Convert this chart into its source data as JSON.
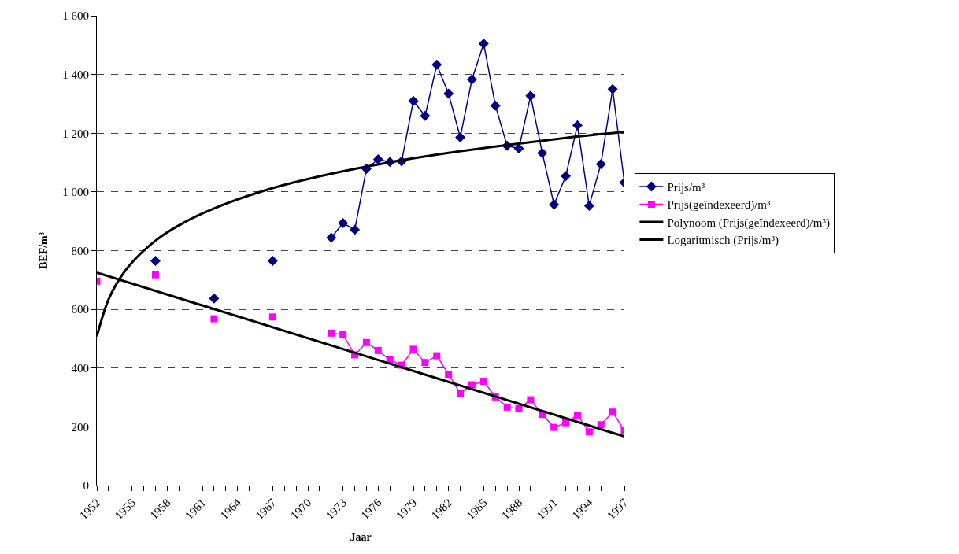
{
  "chart_data": {
    "type": "line",
    "xlabel": "Jaar",
    "ylabel": "BEF/m³",
    "x": [
      1952,
      1953,
      1954,
      1955,
      1956,
      1957,
      1958,
      1959,
      1960,
      1961,
      1962,
      1963,
      1964,
      1965,
      1966,
      1967,
      1968,
      1969,
      1970,
      1971,
      1972,
      1973,
      1974,
      1975,
      1976,
      1977,
      1978,
      1979,
      1980,
      1981,
      1982,
      1983,
      1984,
      1985,
      1986,
      1987,
      1988,
      1989,
      1990,
      1991,
      1992,
      1993,
      1994,
      1995,
      1996,
      1997
    ],
    "series": [
      {
        "name": "Prijs/m³",
        "color": "#000080",
        "marker": "diamond",
        "line_style": "solid",
        "values": [
          null,
          null,
          null,
          null,
          null,
          765,
          null,
          null,
          null,
          null,
          637,
          null,
          null,
          null,
          null,
          765,
          null,
          null,
          null,
          null,
          844,
          894,
          871,
          1079,
          1111,
          1102,
          1104,
          1310,
          1259,
          1433,
          1335,
          1186,
          1383,
          1505,
          1294,
          1157,
          1148,
          1327,
          1132,
          957,
          1054,
          1227,
          953,
          1095,
          1350,
          1032
        ]
      },
      {
        "name": "Prijs(geïndexeerd)/m³",
        "color": "#ff00ff",
        "marker": "square",
        "line_style": "solid",
        "values": [
          696,
          null,
          null,
          null,
          null,
          718,
          null,
          null,
          null,
          null,
          568,
          null,
          null,
          null,
          null,
          574,
          null,
          null,
          null,
          null,
          519,
          514,
          445,
          487,
          460,
          428,
          410,
          464,
          419,
          442,
          379,
          314,
          343,
          355,
          302,
          267,
          262,
          292,
          242,
          198,
          214,
          240,
          183,
          207,
          250,
          187
        ]
      },
      {
        "name": "Polynoom (Prijs(geïndexeerd)/m³)",
        "color": "#000000",
        "marker": "none",
        "line_style": "solid",
        "x": [
          1952,
          1997
        ],
        "values": [
          725,
          167
        ]
      },
      {
        "name": "Logaritmisch (Prijs/m³)",
        "color": "#000000",
        "marker": "none",
        "line_style": "solid",
        "x": [
          1952,
          1953,
          1954,
          1955,
          1957,
          1959,
          1962,
          1967,
          1972,
          1977,
          1982,
          1987,
          1992,
          1997
        ],
        "values": [
          508,
          634,
          708,
          760,
          834,
          886,
          944,
          1013,
          1062,
          1101,
          1133,
          1160,
          1184,
          1205
        ]
      }
    ],
    "xlim": [
      1952,
      1997
    ],
    "xticks": [
      1952,
      {
        "value": 1953,
        "label": null
      },
      {
        "value": 1954,
        "label": null
      },
      1955,
      {
        "value": 1956,
        "label": null
      },
      {
        "value": 1957,
        "label": null
      },
      1958,
      {
        "value": 1959,
        "label": null
      },
      {
        "value": 1960,
        "label": null
      },
      1961,
      {
        "value": 1962,
        "label": null
      },
      {
        "value": 1963,
        "label": null
      },
      1964,
      {
        "value": 1965,
        "label": null
      },
      {
        "value": 1966,
        "label": null
      },
      1967,
      {
        "value": 1968,
        "label": null
      },
      {
        "value": 1969,
        "label": null
      },
      1970,
      {
        "value": 1971,
        "label": null
      },
      {
        "value": 1972,
        "label": null
      },
      1973,
      {
        "value": 1974,
        "label": null
      },
      {
        "value": 1975,
        "label": null
      },
      1976,
      {
        "value": 1977,
        "label": null
      },
      {
        "value": 1978,
        "label": null
      },
      1979,
      {
        "value": 1980,
        "label": null
      },
      {
        "value": 1981,
        "label": null
      },
      1982,
      {
        "value": 1983,
        "label": null
      },
      {
        "value": 1984,
        "label": null
      },
      1985,
      {
        "value": 1986,
        "label": null
      },
      {
        "value": 1987,
        "label": null
      },
      1988,
      {
        "value": 1989,
        "label": null
      },
      {
        "value": 1990,
        "label": null
      },
      1991,
      {
        "value": 1992,
        "label": null
      },
      {
        "value": 1993,
        "label": null
      },
      1994,
      {
        "value": 1995,
        "label": null
      },
      {
        "value": 1996,
        "label": null
      },
      1997
    ],
    "ylim": [
      0,
      1600
    ],
    "yticks": [
      0,
      200,
      400,
      600,
      800,
      {
        "value": 1000,
        "label": "1 000"
      },
      {
        "value": 1200,
        "label": "1 200"
      },
      {
        "value": 1400,
        "label": "1 400"
      },
      {
        "value": 1600,
        "label": "1 600"
      }
    ],
    "grid": "y",
    "legend": "right"
  }
}
